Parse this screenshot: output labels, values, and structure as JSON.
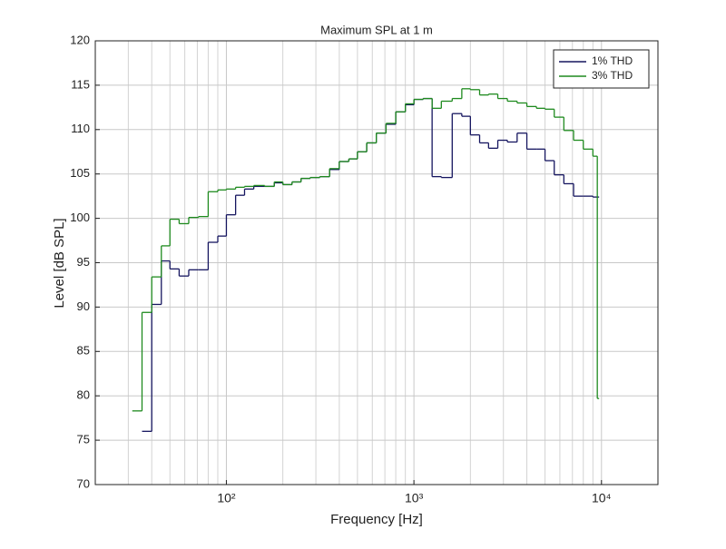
{
  "chart_data": {
    "type": "step",
    "title": "Maximum SPL at 1 m",
    "xlabel": "Frequency [Hz]",
    "ylabel": "Level [dB SPL]",
    "xscale": "log",
    "grid": true,
    "minor_grid": true,
    "legend_loc": "upper right",
    "xlim": [
      20,
      20000
    ],
    "ylim": [
      70,
      120
    ],
    "xticks": [
      {
        "value": 100,
        "label": "10²"
      },
      {
        "value": 1000,
        "label": "10³"
      },
      {
        "value": 10000,
        "label": "10⁴"
      }
    ],
    "yticks": [
      70,
      75,
      80,
      85,
      90,
      95,
      100,
      105,
      110,
      115,
      120
    ],
    "x": [
      31.5,
      35.5,
      40,
      45,
      50,
      56,
      63,
      71,
      80,
      90,
      100,
      112,
      125,
      140,
      160,
      180,
      200,
      224,
      250,
      280,
      315,
      355,
      400,
      450,
      500,
      560,
      630,
      710,
      800,
      900,
      1000,
      1120,
      1250,
      1400,
      1600,
      1800,
      2000,
      2240,
      2500,
      2800,
      3150,
      3550,
      4000,
      4500,
      5000,
      5600,
      6300,
      7100,
      8000,
      9000,
      9500
    ],
    "series": [
      {
        "name": "1% THD",
        "color": "#15155f",
        "values": [
          null,
          76.0,
          90.3,
          95.2,
          94.3,
          93.5,
          94.2,
          94.2,
          97.3,
          98.0,
          100.4,
          102.6,
          103.3,
          103.6,
          103.6,
          104.0,
          103.8,
          104.1,
          104.5,
          104.6,
          104.7,
          105.5,
          106.4,
          106.7,
          107.5,
          108.5,
          109.6,
          110.6,
          112.0,
          112.8,
          113.4,
          113.5,
          104.7,
          104.6,
          111.8,
          111.5,
          109.4,
          108.5,
          107.9,
          108.8,
          108.6,
          109.6,
          107.8,
          107.8,
          106.5,
          104.9,
          103.9,
          102.5,
          102.5,
          102.4,
          102.4
        ]
      },
      {
        "name": "3% THD",
        "color": "#1e8a1e",
        "values": [
          78.3,
          89.4,
          93.4,
          96.9,
          99.9,
          99.4,
          100.1,
          100.2,
          103.0,
          103.2,
          103.3,
          103.5,
          103.6,
          103.7,
          103.6,
          104.1,
          103.8,
          104.1,
          104.5,
          104.6,
          104.7,
          105.6,
          106.4,
          106.7,
          107.5,
          108.5,
          109.6,
          110.7,
          112.0,
          112.9,
          113.4,
          113.5,
          112.4,
          113.2,
          113.5,
          114.6,
          114.5,
          113.9,
          114.0,
          113.5,
          113.2,
          113.0,
          112.6,
          112.4,
          112.3,
          111.4,
          109.9,
          108.8,
          107.8,
          107.0,
          79.7
        ]
      }
    ]
  }
}
